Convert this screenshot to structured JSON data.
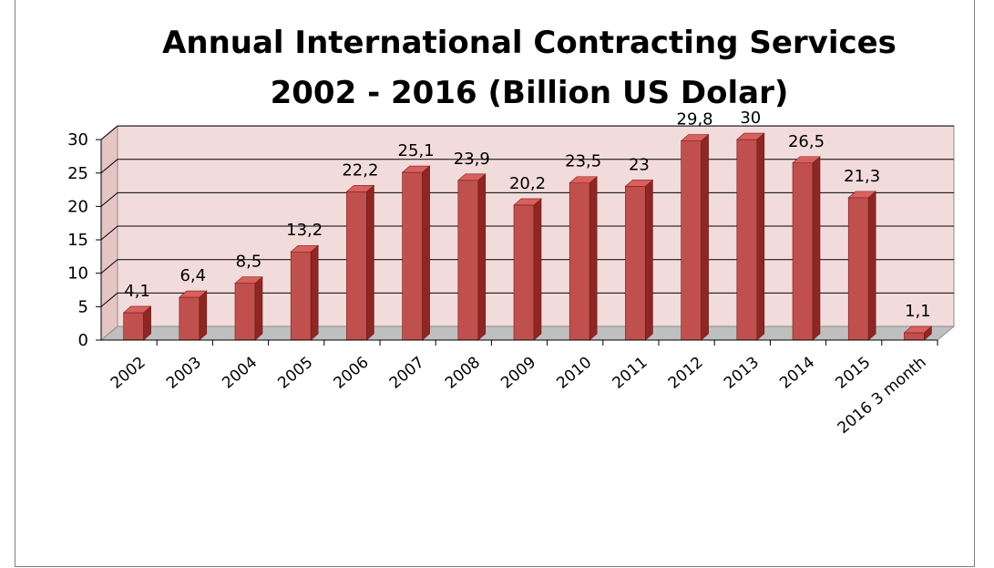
{
  "chart_data": {
    "type": "bar",
    "title_line1": "Annual International Contracting Services",
    "title_line2": "2002 - 2016 (Billion US Dolar)",
    "categories": [
      "2002",
      "2003",
      "2004",
      "2005",
      "2006",
      "2007",
      "2008",
      "2009",
      "2010",
      "2011",
      "2012",
      "2013",
      "2014",
      "2015",
      "2016 3 month"
    ],
    "values": [
      4.1,
      6.4,
      8.5,
      13.2,
      22.2,
      25.1,
      23.9,
      20.2,
      23.5,
      23,
      29.8,
      30,
      26.5,
      21.3,
      1.1
    ],
    "data_labels": [
      "4,1",
      "6,4",
      "8,5",
      "13,2",
      "22,2",
      "25,1",
      "23,9",
      "20,2",
      "23,5",
      "23",
      "29,8",
      "30",
      "26,5",
      "21,3",
      "1,1"
    ],
    "ylim": [
      0,
      30
    ],
    "yticks": [
      "0",
      "5",
      "10",
      "15",
      "20",
      "25",
      "30"
    ],
    "grid": true,
    "style": "3d-column",
    "colors": {
      "bar_front": "#c0504d",
      "bar_side": "#8e2624",
      "bar_top": "#d9605c",
      "wall": "#f2dcdb",
      "floor": "#bfbfbf"
    }
  }
}
